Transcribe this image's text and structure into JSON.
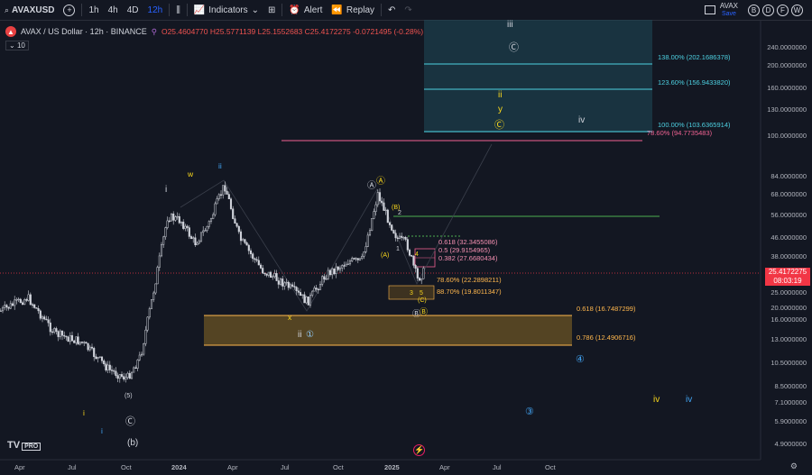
{
  "toolbar": {
    "symbol": "AVAXUSD",
    "intervals": [
      "1h",
      "4h",
      "4D",
      "12h"
    ],
    "active_interval": "12h",
    "indicators_label": "Indicators",
    "alert_label": "Alert",
    "replay_label": "Replay",
    "layout_name": "AVAX",
    "save_label": "Save",
    "right_buttons": [
      "B",
      "D",
      "F",
      "W"
    ]
  },
  "legend": {
    "title": "AVAX / US Dollar · 12h · BINANCE",
    "open": "25.4604770",
    "high": "25.5771139",
    "low": "25.1552683",
    "close": "25.4172275",
    "change": "-0.0721495 (-0.28%)",
    "volume_badge": "10"
  },
  "price_axis": {
    "labels": [
      "240.0000000",
      "200.0000000",
      "160.0000000",
      "130.0000000",
      "100.0000000",
      "84.0000000",
      "68.0000000",
      "56.0000000",
      "46.0000000",
      "38.0000000",
      "30.0000000",
      "25.0000000",
      "20.0000000",
      "16.0000000",
      "13.0000000",
      "10.5000000",
      "8.5000000",
      "7.1000000",
      "5.9000000",
      "4.9000000"
    ],
    "current_price": "25.4172275",
    "countdown": "08:03:19"
  },
  "time_axis": {
    "labels": [
      "Apr",
      "Jul",
      "Oct",
      "2024",
      "Apr",
      "Jul",
      "Oct",
      "2025",
      "Apr",
      "Jul",
      "Oct"
    ]
  },
  "fib_levels": {
    "upper": [
      "138.00% (202.1686378)",
      "123.60% (156.9433820)",
      "100.00% (103.6365914)",
      "78.60% (94.7735483)"
    ],
    "retrace": [
      "0.618 (32.3455086)",
      "0.5 (29.9154965)",
      "0.382 (27.6680434)"
    ],
    "lower_box": [
      "78.60% (22.2898211)",
      "88.70% (19.8011347)"
    ],
    "support": [
      "0.618 (16.7487299)",
      "0.786 (12.4906716)"
    ]
  },
  "wave_labels": {
    "i_low": "i",
    "i_low2": "i",
    "c_circle": "Ⓒ",
    "b_paren": "(b)",
    "five_paren": "(5)",
    "i_2024": "i",
    "w": "w",
    "ii_blue": "ii",
    "x": "x",
    "ii_low": "ii",
    "one_circle": "①",
    "a_circle": "Ⓐ",
    "a_circle2": "Ⓐ",
    "b_paren2": "(B)",
    "two": "2",
    "a_paren": "(A)",
    "one": "1",
    "four": "4",
    "three": "3",
    "five": "5",
    "c_paren": "(C)",
    "b_circle": "Ⓑ",
    "b_circle2": "Ⓑ",
    "iii_top": "iii",
    "c_top": "Ⓒ",
    "ii_top": "ii",
    "y_top": "y",
    "c_top2": "Ⓒ",
    "iv_top": "iv",
    "four_circle": "④",
    "three_circle": "③",
    "iv_y": "iv",
    "iv_b": "iv",
    "lightning": "⚡"
  },
  "colors": {
    "background": "#131722",
    "price_tag": "#f23645",
    "fib_box": "#1f4b5a",
    "support_box": "#6b5424",
    "accent": "#2962ff"
  }
}
